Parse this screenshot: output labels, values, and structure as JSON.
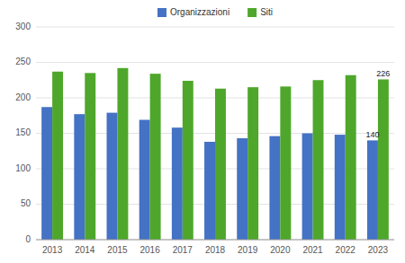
{
  "chart_data": {
    "type": "bar",
    "categories": [
      "2013",
      "2014",
      "2015",
      "2016",
      "2017",
      "2018",
      "2019",
      "2020",
      "2021",
      "2022",
      "2023"
    ],
    "series": [
      {
        "name": "Organizzazioni",
        "color": "#4472C4",
        "values": [
          187,
          177,
          179,
          169,
          158,
          138,
          143,
          146,
          150,
          148,
          140
        ]
      },
      {
        "name": "Siti",
        "color": "#4EA72A",
        "values": [
          237,
          235,
          242,
          234,
          224,
          213,
          215,
          216,
          225,
          232,
          226
        ]
      }
    ],
    "annotations": [
      {
        "text": "140",
        "category": "2023",
        "series": "Organizzazioni"
      },
      {
        "text": "226",
        "category": "2023",
        "series": "Siti"
      }
    ],
    "ylim": [
      0,
      300
    ],
    "yticks": [
      0,
      50,
      100,
      150,
      200,
      250,
      300
    ],
    "grid": true,
    "legend": "top"
  }
}
